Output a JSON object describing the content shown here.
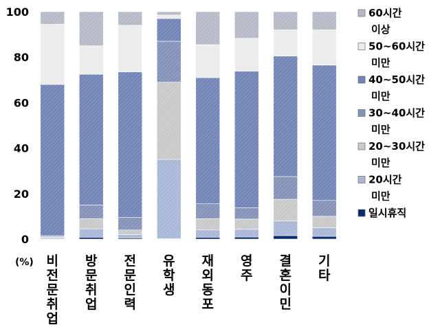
{
  "chart_data": {
    "type": "bar",
    "stacked": true,
    "unit_label": "(%)",
    "ylim": [
      0,
      100
    ],
    "yticks": [
      0,
      20,
      40,
      60,
      80,
      100
    ],
    "grid": false,
    "legend_position": "right",
    "categories": [
      "비전문취업",
      "방문취업",
      "전문인력",
      "유학생",
      "재외동포",
      "영주",
      "결혼이민",
      "기타"
    ],
    "series": [
      {
        "name": "일시휴직",
        "color": "#0b2a6b",
        "values": [
          0.3,
          0.8,
          0.5,
          0.2,
          0.8,
          0.9,
          1.5,
          1.2
        ]
      },
      {
        "name": "20시간 미만",
        "color": "#a9b8d6",
        "values": [
          0.3,
          3.7,
          1.5,
          34.8,
          3.2,
          3.4,
          6.5,
          3.8
        ]
      },
      {
        "name": "20~30시간 미만",
        "color": "#c9c9c9",
        "values": [
          0.4,
          4.5,
          2.0,
          34.0,
          5.0,
          4.5,
          9.5,
          5.0
        ]
      },
      {
        "name": "30~40시간 미만",
        "color": "#8593b9",
        "values": [
          0.5,
          6.0,
          5.5,
          18.0,
          6.5,
          5.0,
          10.0,
          7.0
        ]
      },
      {
        "name": "40~50시간 미만",
        "color": "#7285b8",
        "values": [
          66.5,
          57.5,
          64.0,
          10.0,
          55.5,
          60.0,
          53.0,
          59.5
        ]
      },
      {
        "name": "50~60시간 미만",
        "color": "#ececec",
        "values": [
          26.5,
          12.5,
          20.5,
          1.5,
          14.5,
          14.5,
          11.5,
          15.5
        ]
      },
      {
        "name": "60시간 이상",
        "color": "#b6bac7",
        "values": [
          5.5,
          15.0,
          6.0,
          1.5,
          14.5,
          11.7,
          8.0,
          8.0
        ]
      }
    ]
  }
}
